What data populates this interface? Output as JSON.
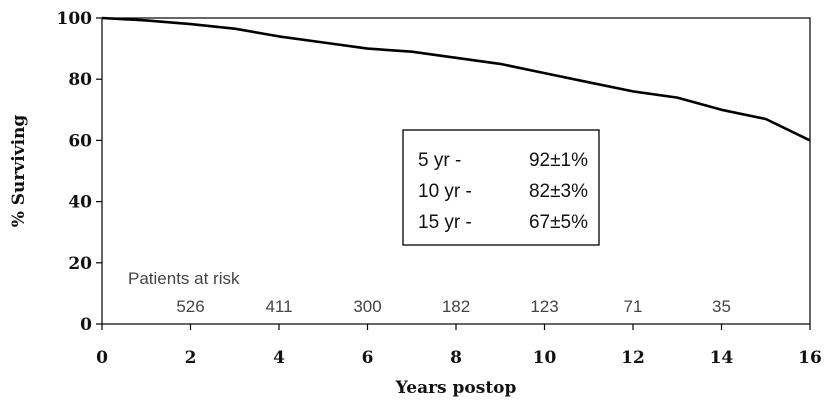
{
  "chart_data": {
    "type": "line",
    "xlabel": "Years postop",
    "ylabel": "% Surviving",
    "xlim": [
      0,
      16
    ],
    "ylim": [
      0,
      100
    ],
    "x_ticks": [
      0,
      2,
      4,
      6,
      8,
      10,
      12,
      14,
      16
    ],
    "y_ticks": [
      0,
      20,
      40,
      60,
      80,
      100
    ],
    "grid": false,
    "series": [
      {
        "x": [
          0,
          1,
          2,
          3,
          4,
          5,
          6,
          7,
          8,
          9,
          10,
          11,
          12,
          13,
          14,
          15,
          16
        ],
        "y": [
          100,
          99.2,
          98,
          96.5,
          94,
          92,
          90,
          89,
          87,
          85,
          82,
          79,
          76,
          74,
          70,
          67,
          60
        ]
      }
    ],
    "risk_table": {
      "title": "Patients at risk",
      "x": [
        2,
        4,
        6,
        8,
        10,
        12,
        14
      ],
      "counts": [
        "526",
        "411",
        "300",
        "182",
        "123",
        "71",
        "35"
      ]
    },
    "annotation_box": [
      {
        "label": "5 yr  -",
        "value": "92±1%"
      },
      {
        "label": "10 yr -",
        "value": "82±3%"
      },
      {
        "label": "15 yr -",
        "value": "67±5%"
      }
    ]
  }
}
